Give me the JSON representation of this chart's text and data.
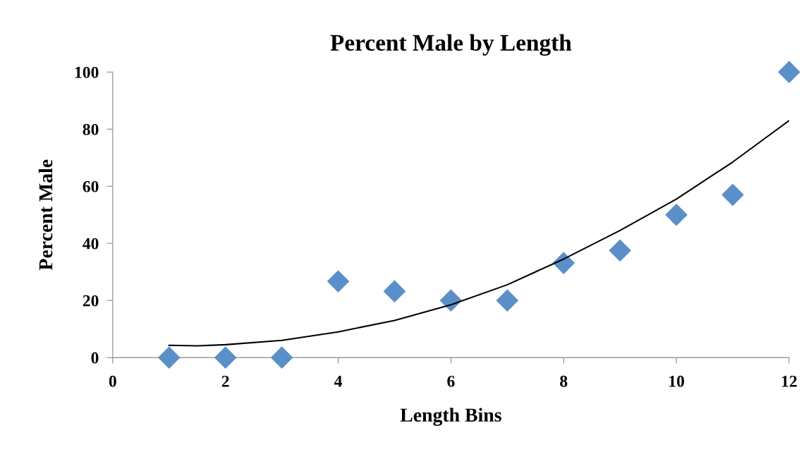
{
  "chart_data": {
    "type": "scatter",
    "title": "Percent Male by Length",
    "xlabel": "Length Bins",
    "ylabel": "Percent Male",
    "xlim": [
      0,
      12
    ],
    "xticks": [
      0,
      2,
      4,
      6,
      8,
      10,
      12
    ],
    "ylim": [
      0,
      100
    ],
    "yticks": [
      0,
      20,
      40,
      60,
      80,
      100
    ],
    "grid": false,
    "series": [
      {
        "color": "#5b8fc9",
        "marker": "diamond",
        "x": [
          1,
          2,
          3,
          4,
          5,
          6,
          7,
          8,
          9,
          10,
          11,
          12
        ],
        "values": [
          0,
          0,
          0,
          26.7,
          23.2,
          20,
          20,
          33.1,
          37.5,
          50,
          57,
          100
        ]
      },
      {
        "type": "line",
        "color": "#000000",
        "marker": "none",
        "line_style": "solid",
        "x": [
          1,
          1.5,
          2,
          3,
          4,
          5,
          6,
          7,
          8,
          9,
          10,
          11,
          12
        ],
        "values": [
          4.3,
          4.1,
          4.5,
          6,
          9,
          13,
          18.5,
          25.5,
          34.5,
          44.5,
          55.5,
          68.5,
          83
        ]
      }
    ]
  }
}
